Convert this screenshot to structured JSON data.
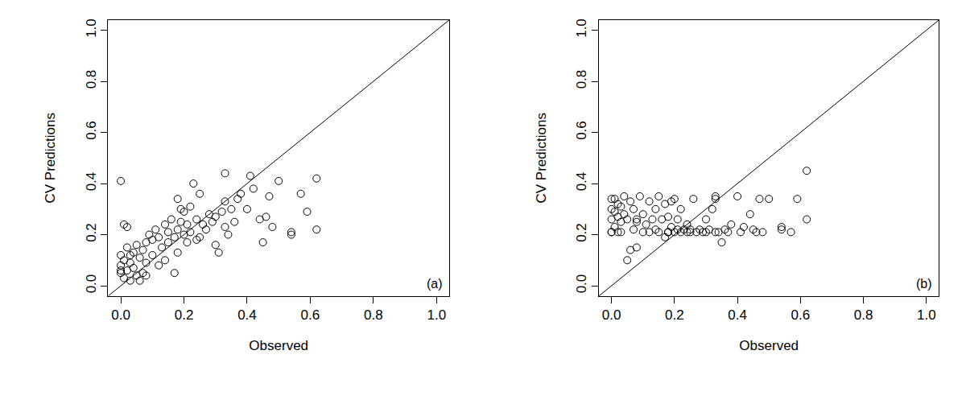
{
  "chart_data": [
    {
      "type": "scatter",
      "x_label": "Observed",
      "y_label": "CV Predictions",
      "annotation": "(a)",
      "marker": "circle-open",
      "color": "#000000",
      "grid": false,
      "xlim": [
        -0.04,
        1.04
      ],
      "ylim": [
        -0.04,
        1.04
      ],
      "xticks": [
        {
          "value": 0,
          "label": "0.0"
        },
        {
          "value": 0.2,
          "label": "0.2"
        },
        {
          "value": 0.4,
          "label": "0.4"
        },
        {
          "value": 0.6,
          "label": "0.6"
        },
        {
          "value": 0.8,
          "label": "0.8"
        },
        {
          "value": 1,
          "label": "1.0"
        }
      ],
      "yticks": [
        {
          "value": 0,
          "label": "0.0"
        },
        {
          "value": 0.2,
          "label": "0.2"
        },
        {
          "value": 0.4,
          "label": "0.4"
        },
        {
          "value": 0.6,
          "label": "0.6"
        },
        {
          "value": 0.8,
          "label": "0.8"
        },
        {
          "value": 1,
          "label": "1.0"
        }
      ],
      "reference_line": {
        "x": [
          -0.04,
          1.04
        ],
        "y": [
          -0.04,
          1.04
        ]
      },
      "x": [
        0.0,
        0.0,
        0.0,
        0.0,
        0.01,
        0.01,
        0.01,
        0.02,
        0.02,
        0.02,
        0.03,
        0.03,
        0.04,
        0.04,
        0.05,
        0.05,
        0.06,
        0.06,
        0.07,
        0.07,
        0.08,
        0.08,
        0.09,
        0.1,
        0.1,
        0.11,
        0.12,
        0.12,
        0.13,
        0.14,
        0.14,
        0.15,
        0.15,
        0.16,
        0.17,
        0.17,
        0.18,
        0.18,
        0.19,
        0.2,
        0.2,
        0.21,
        0.21,
        0.22,
        0.22,
        0.23,
        0.24,
        0.24,
        0.25,
        0.26,
        0.27,
        0.28,
        0.29,
        0.3,
        0.3,
        0.31,
        0.32,
        0.33,
        0.33,
        0.34,
        0.35,
        0.36,
        0.37,
        0.38,
        0.4,
        0.41,
        0.42,
        0.44,
        0.45,
        0.46,
        0.47,
        0.48,
        0.5,
        0.54,
        0.54,
        0.57,
        0.59,
        0.62,
        0.62,
        0.0,
        0.03,
        0.08,
        0.18,
        0.19,
        0.25,
        0.33
      ],
      "y": [
        0.41,
        0.05,
        0.08,
        0.12,
        0.03,
        0.24,
        0.1,
        0.23,
        0.06,
        0.15,
        0.09,
        0.02,
        0.13,
        0.07,
        0.16,
        0.04,
        0.11,
        0.02,
        0.14,
        0.05,
        0.17,
        0.09,
        0.2,
        0.12,
        0.18,
        0.22,
        0.08,
        0.19,
        0.15,
        0.24,
        0.1,
        0.21,
        0.17,
        0.26,
        0.19,
        0.05,
        0.22,
        0.34,
        0.25,
        0.2,
        0.29,
        0.17,
        0.24,
        0.31,
        0.21,
        0.4,
        0.26,
        0.18,
        0.36,
        0.24,
        0.22,
        0.28,
        0.25,
        0.16,
        0.27,
        0.13,
        0.29,
        0.44,
        0.33,
        0.2,
        0.3,
        0.25,
        0.34,
        0.36,
        0.3,
        0.43,
        0.38,
        0.26,
        0.17,
        0.27,
        0.35,
        0.23,
        0.41,
        0.21,
        0.2,
        0.36,
        0.29,
        0.42,
        0.22,
        0.06,
        0.12,
        0.04,
        0.13,
        0.3,
        0.19,
        0.23
      ]
    },
    {
      "type": "scatter",
      "x_label": "Observed",
      "y_label": "CV Predictions",
      "annotation": "(b)",
      "marker": "circle-open",
      "color": "#000000",
      "grid": false,
      "xlim": [
        -0.04,
        1.04
      ],
      "ylim": [
        -0.04,
        1.04
      ],
      "xticks": [
        {
          "value": 0,
          "label": "0.0"
        },
        {
          "value": 0.2,
          "label": "0.2"
        },
        {
          "value": 0.4,
          "label": "0.4"
        },
        {
          "value": 0.6,
          "label": "0.6"
        },
        {
          "value": 0.8,
          "label": "0.8"
        },
        {
          "value": 1,
          "label": "1.0"
        }
      ],
      "yticks": [
        {
          "value": 0,
          "label": "0.0"
        },
        {
          "value": 0.2,
          "label": "0.2"
        },
        {
          "value": 0.4,
          "label": "0.4"
        },
        {
          "value": 0.6,
          "label": "0.6"
        },
        {
          "value": 0.8,
          "label": "0.8"
        },
        {
          "value": 1,
          "label": "1.0"
        }
      ],
      "reference_line": {
        "x": [
          -0.04,
          1.04
        ],
        "y": [
          -0.04,
          1.04
        ]
      },
      "x": [
        0.0,
        0.0,
        0.0,
        0.0,
        0.01,
        0.01,
        0.01,
        0.02,
        0.02,
        0.02,
        0.03,
        0.03,
        0.04,
        0.04,
        0.05,
        0.05,
        0.06,
        0.06,
        0.07,
        0.07,
        0.08,
        0.08,
        0.09,
        0.1,
        0.1,
        0.11,
        0.12,
        0.12,
        0.13,
        0.14,
        0.14,
        0.15,
        0.15,
        0.16,
        0.17,
        0.17,
        0.18,
        0.18,
        0.19,
        0.2,
        0.2,
        0.21,
        0.21,
        0.22,
        0.22,
        0.23,
        0.24,
        0.24,
        0.25,
        0.26,
        0.27,
        0.28,
        0.29,
        0.3,
        0.3,
        0.31,
        0.32,
        0.33,
        0.33,
        0.34,
        0.35,
        0.36,
        0.37,
        0.38,
        0.4,
        0.41,
        0.42,
        0.44,
        0.45,
        0.46,
        0.47,
        0.48,
        0.5,
        0.54,
        0.54,
        0.57,
        0.59,
        0.62,
        0.62,
        0.0,
        0.03,
        0.08,
        0.18,
        0.19,
        0.25,
        0.33
      ],
      "y": [
        0.34,
        0.3,
        0.26,
        0.21,
        0.29,
        0.34,
        0.23,
        0.21,
        0.27,
        0.32,
        0.25,
        0.21,
        0.35,
        0.28,
        0.1,
        0.26,
        0.14,
        0.33,
        0.22,
        0.3,
        0.15,
        0.26,
        0.35,
        0.21,
        0.28,
        0.24,
        0.33,
        0.21,
        0.26,
        0.3,
        0.22,
        0.35,
        0.21,
        0.26,
        0.19,
        0.32,
        0.21,
        0.27,
        0.23,
        0.21,
        0.34,
        0.22,
        0.26,
        0.21,
        0.3,
        0.22,
        0.21,
        0.24,
        0.21,
        0.34,
        0.21,
        0.22,
        0.21,
        0.26,
        0.21,
        0.22,
        0.3,
        0.21,
        0.34,
        0.21,
        0.17,
        0.22,
        0.21,
        0.24,
        0.35,
        0.21,
        0.23,
        0.28,
        0.22,
        0.21,
        0.34,
        0.21,
        0.34,
        0.23,
        0.22,
        0.21,
        0.34,
        0.45,
        0.26,
        0.21,
        0.31,
        0.25,
        0.21,
        0.33,
        0.22,
        0.35
      ]
    }
  ]
}
